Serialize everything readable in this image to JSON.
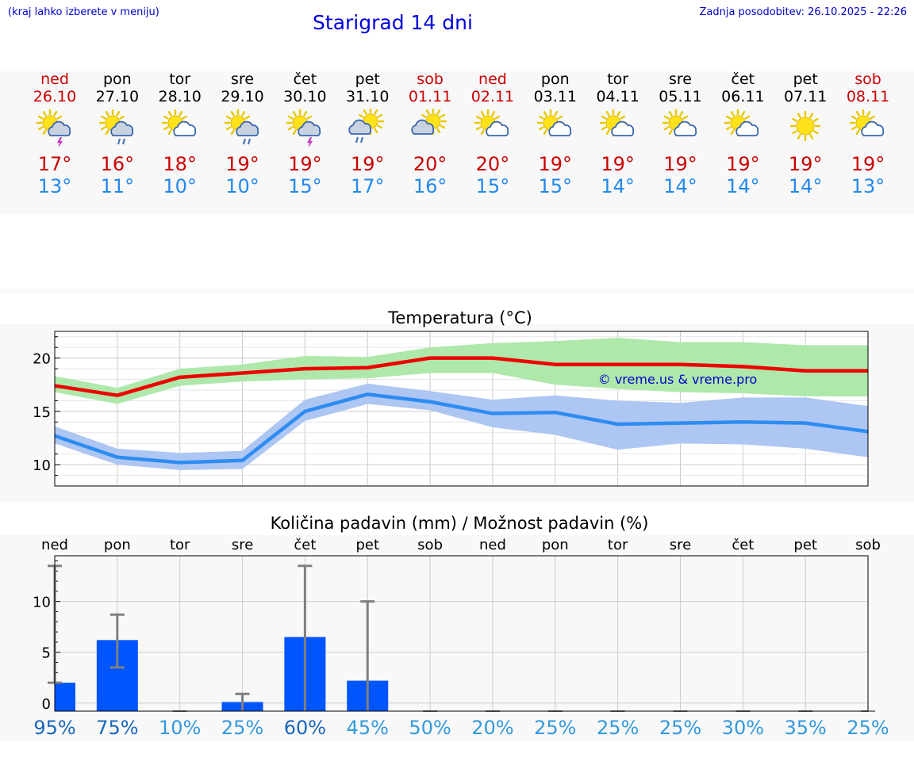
{
  "header": {
    "hint": "(kraj lahko izberete v meniju)",
    "title": "Starigrad 14 dni",
    "updated": "Zadnja posodobitev: 26.10.2025 - 22:26"
  },
  "days": [
    {
      "name": "ned",
      "date": "26.10",
      "weekend": true,
      "icon": "sun-cloud-thunder-icon",
      "tmax": "17°",
      "tmin": "13°"
    },
    {
      "name": "pon",
      "date": "27.10",
      "weekend": false,
      "icon": "sun-cloud-rain-icon",
      "tmax": "16°",
      "tmin": "11°"
    },
    {
      "name": "tor",
      "date": "28.10",
      "weekend": false,
      "icon": "sun-cloud-icon",
      "tmax": "18°",
      "tmin": "10°"
    },
    {
      "name": "sre",
      "date": "29.10",
      "weekend": false,
      "icon": "sun-cloud-rain-icon",
      "tmax": "19°",
      "tmin": "10°"
    },
    {
      "name": "čet",
      "date": "30.10",
      "weekend": false,
      "icon": "sun-cloud-thunder-icon",
      "tmax": "19°",
      "tmin": "15°"
    },
    {
      "name": "pet",
      "date": "31.10",
      "weekend": false,
      "icon": "cloud-sun-rain-icon",
      "tmax": "19°",
      "tmin": "17°"
    },
    {
      "name": "sob",
      "date": "01.11",
      "weekend": true,
      "icon": "cloud-sun-icon",
      "tmax": "20°",
      "tmin": "16°"
    },
    {
      "name": "ned",
      "date": "02.11",
      "weekend": true,
      "icon": "sun-cloud-icon",
      "tmax": "20°",
      "tmin": "15°"
    },
    {
      "name": "pon",
      "date": "03.11",
      "weekend": false,
      "icon": "sun-cloud-icon",
      "tmax": "19°",
      "tmin": "15°"
    },
    {
      "name": "tor",
      "date": "04.11",
      "weekend": false,
      "icon": "sun-cloud-icon",
      "tmax": "19°",
      "tmin": "14°"
    },
    {
      "name": "sre",
      "date": "05.11",
      "weekend": false,
      "icon": "sun-cloud-icon",
      "tmax": "19°",
      "tmin": "14°"
    },
    {
      "name": "čet",
      "date": "06.11",
      "weekend": false,
      "icon": "sun-cloud-icon",
      "tmax": "19°",
      "tmin": "14°"
    },
    {
      "name": "pet",
      "date": "07.11",
      "weekend": false,
      "icon": "sun-icon",
      "tmax": "19°",
      "tmin": "14°"
    },
    {
      "name": "sob",
      "date": "08.11",
      "weekend": true,
      "icon": "sun-cloud-icon",
      "tmax": "19°",
      "tmin": "13°"
    }
  ],
  "colors": {
    "max_line": "#ee0000",
    "max_band": "#aee8aa",
    "min_line": "#2e8cf0",
    "min_band": "#adc6f2",
    "bar": "#0055ff",
    "errorbar": "#808080",
    "pct_high": "#1a66bb",
    "pct_low": "#3399dd"
  },
  "chart_data": [
    {
      "type": "line",
      "title": "Temperatura (°C)",
      "watermark": "© vreme.us & vreme.pro",
      "ylim": [
        8,
        22.5
      ],
      "yticks": [
        10,
        15,
        20
      ],
      "x": [
        0,
        1,
        2,
        3,
        4,
        5,
        6,
        7,
        8,
        9,
        10,
        11,
        12,
        13
      ],
      "series": [
        {
          "name": "max",
          "values": [
            17.4,
            16.5,
            18.2,
            18.6,
            19.0,
            19.1,
            20.0,
            20.0,
            19.4,
            19.4,
            19.4,
            19.2,
            18.8,
            18.8
          ],
          "band_low": [
            16.8,
            15.7,
            17.4,
            17.8,
            18.0,
            18.1,
            18.6,
            18.6,
            17.5,
            17.1,
            16.8,
            16.7,
            16.4,
            16.4
          ],
          "band_high": [
            18.3,
            17.2,
            19.0,
            19.4,
            20.2,
            20.1,
            21.0,
            21.4,
            21.6,
            21.9,
            21.5,
            21.5,
            21.2,
            21.2
          ]
        },
        {
          "name": "min",
          "values": [
            12.7,
            10.7,
            10.2,
            10.4,
            15.0,
            16.6,
            15.9,
            14.8,
            14.9,
            13.8,
            13.9,
            14.0,
            13.9,
            13.1
          ],
          "band_low": [
            12.0,
            10.0,
            9.5,
            9.6,
            14.1,
            15.7,
            15.1,
            13.5,
            12.8,
            11.4,
            12.0,
            11.9,
            11.5,
            10.7
          ],
          "band_high": [
            13.6,
            11.5,
            11.1,
            11.3,
            16.1,
            17.6,
            16.9,
            16.1,
            16.5,
            16.0,
            15.8,
            16.3,
            16.3,
            15.5
          ]
        }
      ]
    },
    {
      "type": "bar",
      "title": "Količina padavin (mm) / Možnost padavin (%)",
      "categories": [
        "ned",
        "pon",
        "tor",
        "sre",
        "čet",
        "pet",
        "sob",
        "ned",
        "pon",
        "tor",
        "sre",
        "čet",
        "pet",
        "sob"
      ],
      "ylim": [
        -0.8,
        14.5
      ],
      "yticks": [
        0,
        5,
        10
      ],
      "values": [
        2.0,
        6.2,
        0,
        0.1,
        6.5,
        2.2,
        0,
        0,
        0,
        0,
        0,
        0,
        0,
        0
      ],
      "err_low": [
        2.0,
        3.5,
        0,
        0,
        0,
        0,
        0,
        0,
        0,
        0,
        0,
        0,
        0,
        0
      ],
      "err_high": [
        13.5,
        8.7,
        0,
        0.9,
        13.5,
        10.0,
        0,
        0,
        0,
        0,
        0,
        0,
        0,
        0
      ],
      "probability": [
        "95%",
        "75%",
        "10%",
        "25%",
        "60%",
        "45%",
        "50%",
        "20%",
        "25%",
        "25%",
        "25%",
        "30%",
        "35%",
        "25%"
      ],
      "probability_values": [
        95,
        75,
        10,
        25,
        60,
        45,
        50,
        20,
        25,
        25,
        25,
        30,
        35,
        25
      ]
    }
  ]
}
